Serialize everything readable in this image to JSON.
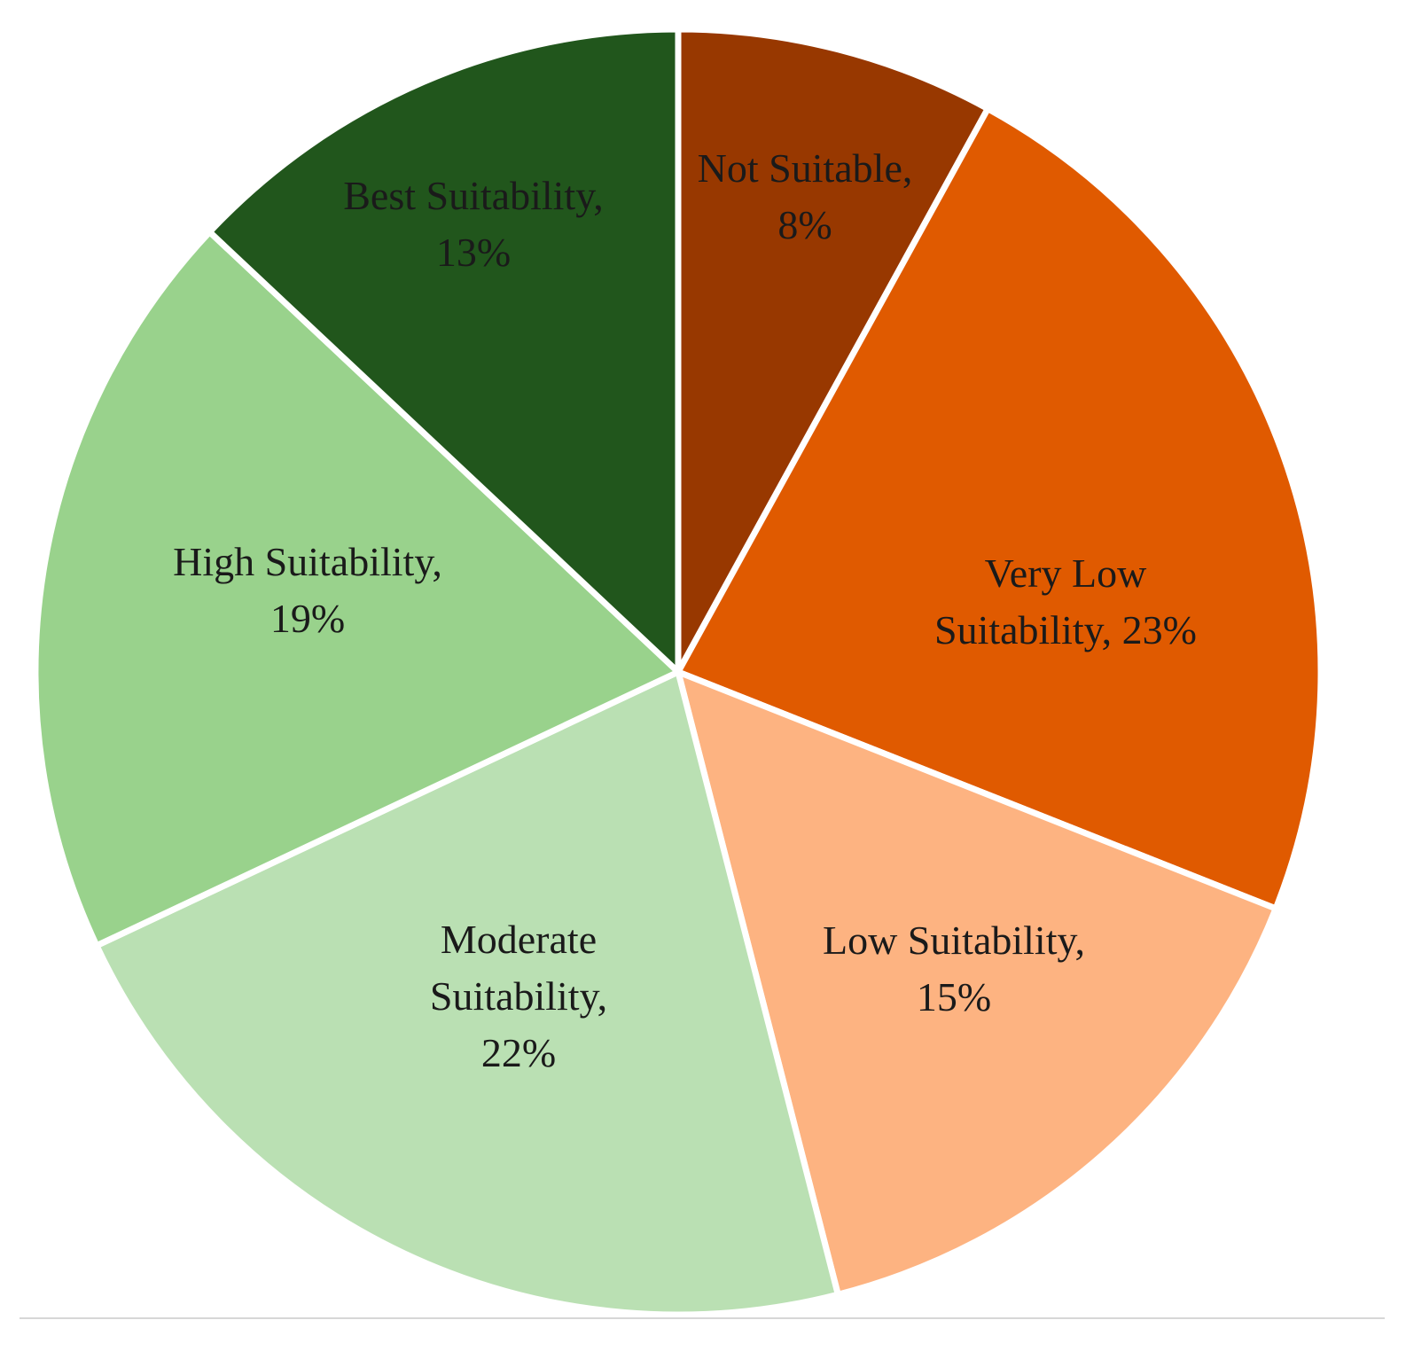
{
  "chart_data": {
    "type": "pie",
    "slices": [
      {
        "label": "Not Suitable",
        "value": 8,
        "color": "#983800"
      },
      {
        "label": "Very Low Suitability",
        "value": 23,
        "color": "#e05a00"
      },
      {
        "label": "Low Suitability",
        "value": 15,
        "color": "#fdb381"
      },
      {
        "label": "Moderate Suitability",
        "value": 22,
        "color": "#bae0b3"
      },
      {
        "label": "High Suitability",
        "value": 19,
        "color": "#99d28c"
      },
      {
        "label": "Best Suitability",
        "value": 13,
        "color": "#21561c"
      }
    ],
    "data_labels": [
      {
        "lines": [
          "Not Suitable,",
          "8%"
        ]
      },
      {
        "lines": [
          "Very Low",
          "Suitability, 23%"
        ]
      },
      {
        "lines": [
          "Low Suitability,",
          "15%"
        ]
      },
      {
        "lines": [
          "Moderate",
          "Suitability,",
          "22%"
        ]
      },
      {
        "lines": [
          "High Suitability,",
          "19%"
        ]
      },
      {
        "lines": [
          "Best Suitability,",
          "13%"
        ]
      }
    ],
    "start": "12 o'clock",
    "direction": "clockwise",
    "legend": "none",
    "slice_separator_color": "#ffffff"
  }
}
